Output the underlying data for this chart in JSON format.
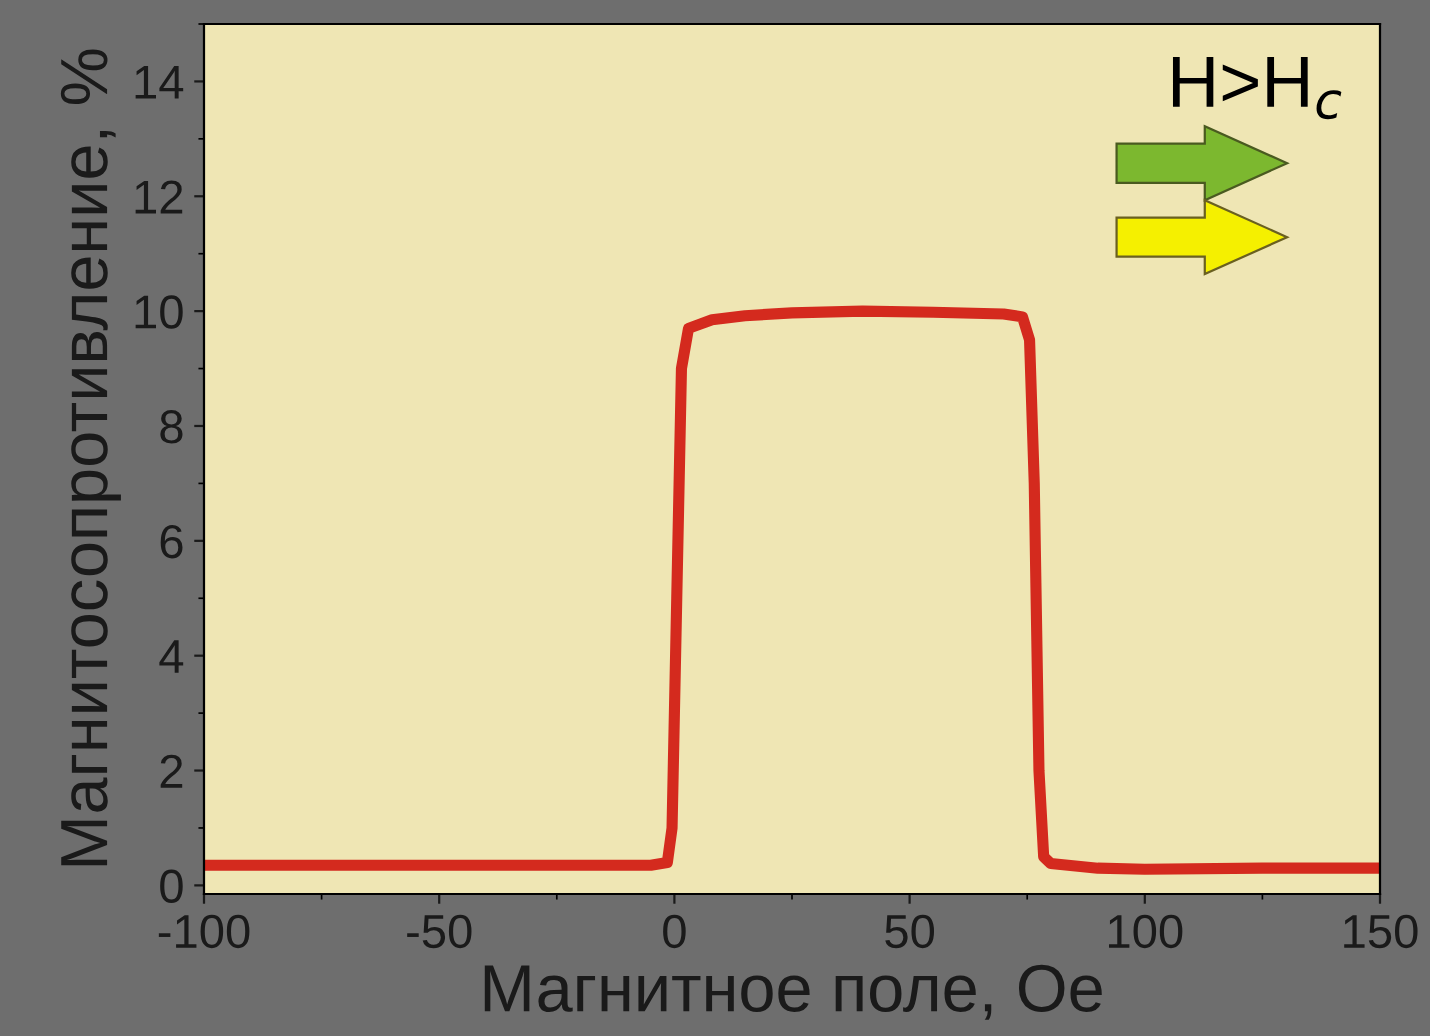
{
  "chart_data": {
    "type": "line",
    "xlabel": "Магнитное поле, Oe",
    "ylabel": "Магнитосопротивление, %",
    "annotations": [
      "H>H$_{c}$"
    ],
    "xlim": [
      -100,
      150
    ],
    "xticks": [
      -100,
      -50,
      0,
      50,
      100,
      150
    ],
    "ylim": [
      -0.15,
      15
    ],
    "yticks": [
      0,
      2,
      4,
      6,
      8,
      10,
      12,
      14
    ],
    "grid": false,
    "marker": "none",
    "line_style": "solid",
    "series": [
      {
        "color": "#d42a1e",
        "x": [
          -100,
          -50,
          -5,
          -1.5,
          -0.5,
          0.5,
          1.5,
          3,
          8,
          15,
          25,
          40,
          55,
          70,
          74,
          75.5,
          76.5,
          77.5,
          78.5,
          80,
          90,
          100,
          125,
          150
        ],
        "values": [
          0.35,
          0.35,
          0.35,
          0.4,
          1.0,
          5.0,
          9.0,
          9.7,
          9.85,
          9.92,
          9.97,
          10.0,
          9.98,
          9.95,
          9.9,
          9.5,
          7.0,
          2.0,
          0.5,
          0.38,
          0.3,
          0.28,
          0.3,
          0.3
        ]
      }
    ]
  }
}
